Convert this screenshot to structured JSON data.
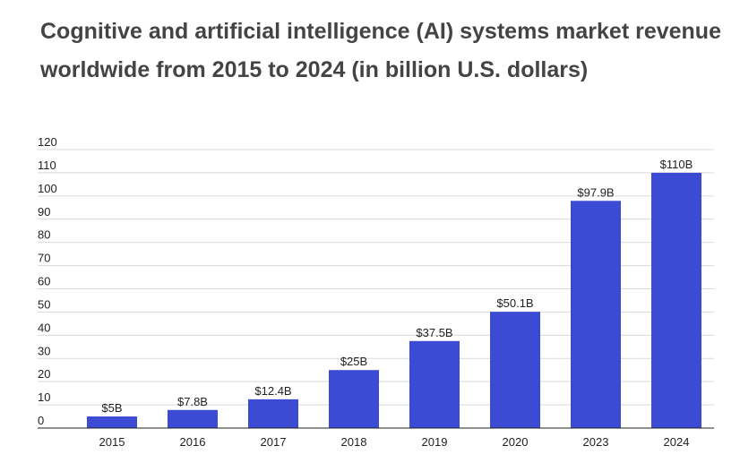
{
  "chart_data": {
    "type": "bar",
    "title": "Cognitive and artificial intelligence (AI) systems market revenue worldwide from 2015 to 2024 (in billion U.S. dollars)",
    "categories": [
      "2015",
      "2016",
      "2017",
      "2018",
      "2019",
      "2020",
      "2023",
      "2024"
    ],
    "values": [
      5,
      7.8,
      12.4,
      25,
      37.5,
      50.1,
      97.9,
      110
    ],
    "data_labels": [
      "$5B",
      "$7.8B",
      "$12.4B",
      "$25B",
      "$37.5B",
      "$50.1B",
      "$97.9B",
      "$110B"
    ],
    "xlabel": "",
    "ylabel": "",
    "ylim": [
      0,
      120
    ],
    "yticks": [
      0,
      10,
      20,
      30,
      40,
      50,
      60,
      70,
      80,
      90,
      100,
      110,
      120
    ],
    "grid": true,
    "bar_color": "#3b4bd4"
  }
}
